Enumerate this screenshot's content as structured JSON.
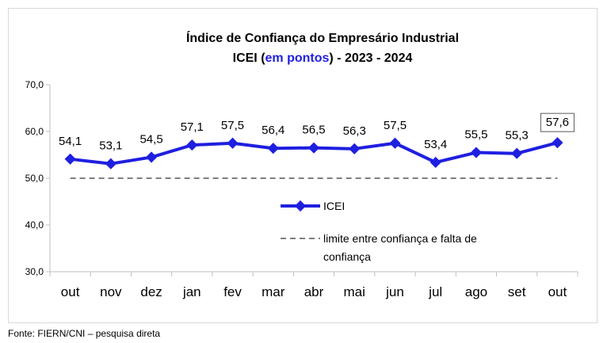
{
  "chart_data": {
    "type": "line",
    "title_line1": "Índice de Confiança do Empresário Industrial",
    "title_line2_prefix": "ICEI (",
    "title_line2_highlight": "em pontos",
    "title_line2_suffix": ") - 2023 - 2024",
    "categories": [
      "out",
      "nov",
      "dez",
      "jan",
      "fev",
      "mar",
      "abr",
      "mai",
      "jun",
      "jul",
      "ago",
      "set",
      "out"
    ],
    "series": [
      {
        "name": "ICEI",
        "values": [
          54.1,
          53.1,
          54.5,
          57.1,
          57.5,
          56.4,
          56.5,
          56.3,
          57.5,
          53.4,
          55.5,
          55.3,
          57.6
        ],
        "labels": [
          "54,1",
          "53,1",
          "54,5",
          "57,1",
          "57,5",
          "56,4",
          "56,5",
          "56,3",
          "57,5",
          "53,4",
          "55,5",
          "55,3",
          "57,6"
        ],
        "color": "#1f1fe0"
      }
    ],
    "reference_line": {
      "name": "limite entre confiança e falta de confiança",
      "name_line1": "limite entre confiança e falta de",
      "name_line2": "confiança",
      "value": 50,
      "color": "#7f7f7f"
    },
    "ylim": [
      30,
      70
    ],
    "yticks": [
      30,
      40,
      50,
      60,
      70
    ],
    "ytick_labels": [
      "30,0",
      "40,0",
      "50,0",
      "60,0",
      "70,0"
    ],
    "grid": false,
    "legend_position": "center"
  },
  "source": "Fonte: FIERN/CNI – pesquisa direta"
}
